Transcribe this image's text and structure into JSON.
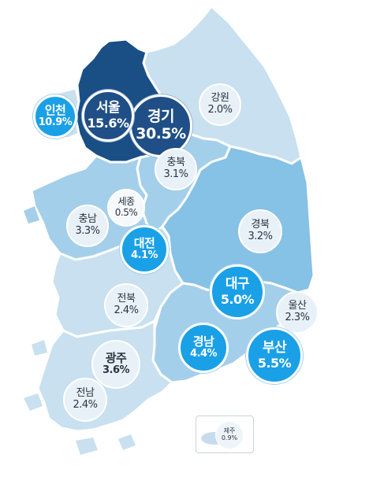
{
  "regions": [
    {
      "id": "gyeonggi",
      "name": "경기",
      "value": "30.5%",
      "pct": 30.5
    },
    {
      "id": "seoul",
      "name": "서울",
      "value": "15.6%",
      "pct": 15.6
    },
    {
      "id": "incheon",
      "name": "인천",
      "value": "10.9%",
      "pct": 10.9
    },
    {
      "id": "gangwon",
      "name": "강원",
      "value": "2.0%",
      "pct": 2.0
    },
    {
      "id": "chungbuk",
      "name": "충북",
      "value": "3.1%",
      "pct": 3.1
    },
    {
      "id": "sejong",
      "name": "세종",
      "value": "0.5%",
      "pct": 0.5
    },
    {
      "id": "chungnam",
      "name": "충남",
      "value": "3.3%",
      "pct": 3.3
    },
    {
      "id": "daejeon",
      "name": "대전",
      "value": "4.1%",
      "pct": 4.1
    },
    {
      "id": "gyeongbuk",
      "name": "경북",
      "value": "3.2%",
      "pct": 3.2
    },
    {
      "id": "daegu",
      "name": "대구",
      "value": "5.0%",
      "pct": 5.0
    },
    {
      "id": "jeonbuk",
      "name": "전북",
      "value": "2.4%",
      "pct": 2.4
    },
    {
      "id": "ulsan",
      "name": "울산",
      "value": "2.3%",
      "pct": 2.3
    },
    {
      "id": "gyeongnam",
      "name": "경남",
      "value": "4.4%",
      "pct": 4.4
    },
    {
      "id": "busan",
      "name": "부산",
      "value": "5.5%",
      "pct": 5.5
    },
    {
      "id": "gwangju",
      "name": "광주",
      "value": "3.6%",
      "pct": 3.6
    },
    {
      "id": "jeonnam",
      "name": "전남",
      "value": "2.4%",
      "pct": 2.4
    }
  ],
  "jeju": {
    "name": "제주",
    "value": "0.9%",
    "pct": 0.9
  },
  "colors": {
    "sea": "#ffffff",
    "land_light": "#c8e0ef",
    "land_mid": "#a4cfea",
    "land_strong": "#86c1e6",
    "land_dark": "#1a4f86",
    "border": "#ffffff",
    "bubble_dark": "#1f4f86",
    "bubble_blue": "#1aa0e6",
    "bubble_pale": "#e8f1f8"
  }
}
